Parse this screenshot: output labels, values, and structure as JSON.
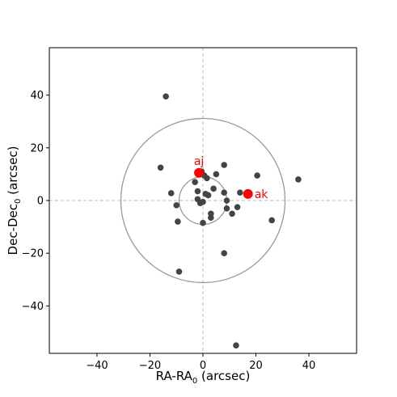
{
  "chart_data": {
    "type": "scatter",
    "xlabel": "RA-RA",
    "xlabel_sub": "0",
    "xlabel_tail": " (arcsec)",
    "ylabel": "Dec-Dec",
    "ylabel_sub": "0",
    "ylabel_tail": " (arcsec)",
    "xlim": [
      -58,
      58
    ],
    "ylim": [
      -58,
      58
    ],
    "x_ticks": [
      -40,
      -20,
      0,
      20,
      40
    ],
    "y_ticks": [
      -40,
      -20,
      0,
      20,
      40
    ],
    "x_tick_labels": [
      "−40",
      "−20",
      "0",
      "20",
      "40"
    ],
    "y_tick_labels": [
      "−40",
      "−20",
      "0",
      "20",
      "40"
    ],
    "grid": false,
    "crosshair": {
      "x": 0,
      "y": 0,
      "style": "dashed",
      "color": "#bbbbbb"
    },
    "circles": [
      {
        "center": [
          0,
          0
        ],
        "radius": 9,
        "color": "#999999"
      },
      {
        "center": [
          0,
          0
        ],
        "radius": 31,
        "color": "#999999"
      }
    ],
    "series": [
      {
        "color": "#444444",
        "points": [
          [
            -14,
            39.5
          ],
          [
            -16,
            12.5
          ],
          [
            -12,
            2.8
          ],
          [
            -10,
            -1.8
          ],
          [
            -9.5,
            -8
          ],
          [
            -9,
            -27
          ],
          [
            -3,
            7
          ],
          [
            -2,
            3.5
          ],
          [
            -2,
            0.5
          ],
          [
            -1,
            -1
          ],
          [
            -0.5,
            11
          ],
          [
            0,
            -8.5
          ],
          [
            0,
            -0.5
          ],
          [
            0.5,
            9.5
          ],
          [
            1,
            2.5
          ],
          [
            1.5,
            8.5
          ],
          [
            2,
            2
          ],
          [
            3,
            -5
          ],
          [
            3,
            -6.5
          ],
          [
            4,
            4.5
          ],
          [
            5,
            10
          ],
          [
            8,
            3
          ],
          [
            8,
            13.5
          ],
          [
            8,
            -20
          ],
          [
            9,
            -3
          ],
          [
            9,
            0
          ],
          [
            11,
            -5
          ],
          [
            13,
            -2.5
          ],
          [
            14,
            3
          ],
          [
            17,
            2.5
          ],
          [
            20.5,
            9.5
          ],
          [
            26,
            -7.5
          ],
          [
            36,
            8
          ],
          [
            12.5,
            -55
          ]
        ]
      },
      {
        "color": "#ff0000",
        "points": [
          [
            -1.5,
            10.5
          ],
          [
            17,
            2.5
          ]
        ]
      }
    ],
    "annotations": [
      {
        "text": "aj",
        "x": -1.5,
        "y": 10.5,
        "color": "#ff0000"
      },
      {
        "text": "ak",
        "x": 17,
        "y": 2.5,
        "color": "#ff0000"
      }
    ]
  }
}
